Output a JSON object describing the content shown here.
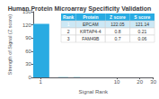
{
  "chart_data": {
    "type": "bar",
    "title": "Human Protein Microarray Specificity Validation",
    "xlabel": "Signal Rank",
    "ylabel": "Strength of Signal (Z score)",
    "x": [
      1,
      2,
      3,
      4,
      5,
      6,
      7,
      8,
      9,
      10,
      11,
      12,
      13,
      14,
      15,
      16,
      17,
      18,
      19,
      20,
      21,
      22,
      23,
      24,
      25,
      26,
      27,
      28,
      29,
      30
    ],
    "values": [
      122.05,
      0.8,
      0.7,
      0.05,
      0.05,
      0.05,
      0.05,
      0.05,
      0.05,
      0.05,
      0.05,
      0.05,
      0.05,
      0.05,
      0.05,
      0.05,
      0.05,
      0.05,
      0.05,
      0.05,
      0.05,
      0.05,
      0.05,
      0.05,
      0.05,
      0.05,
      0.05,
      0.05,
      0.05,
      0.05
    ],
    "color": "#29abe2",
    "log": "x",
    "xlim": [
      0.8,
      30
    ],
    "xticks": [
      1,
      10,
      20,
      30
    ],
    "ylim": [
      0,
      150
    ],
    "yticks": [
      0,
      30,
      60,
      90,
      120,
      150
    ],
    "grid": false,
    "table": {
      "rows": [
        [
          "Rank",
          "Protein",
          "Z score",
          "S score"
        ],
        [
          "1",
          "EPCAM",
          "122.05",
          "121.14"
        ],
        [
          "2",
          "KRTAP4-4",
          "0.8",
          "0.21"
        ],
        [
          "3",
          "FAM49B",
          "0.7",
          "0.06"
        ]
      ],
      "header_color": "#29abe2",
      "header_text_color": "#ffffff",
      "row1_color": "#cce8f5",
      "row_color": "#ffffff",
      "text_color": "#333333"
    }
  }
}
